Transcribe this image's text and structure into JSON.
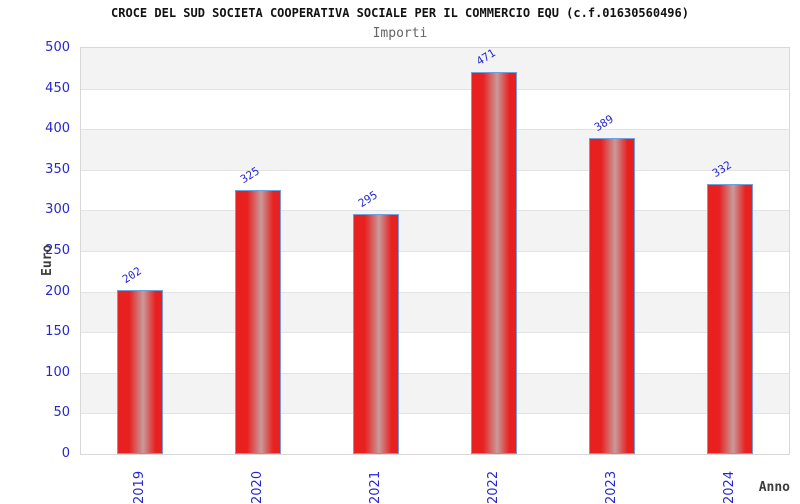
{
  "page": {
    "title": "CROCE DEL SUD SOCIETA COOPERATIVA SOCIALE PER IL COMMERCIO EQU (c.f.01630560496)",
    "subtitle": "Importi"
  },
  "chart_data": {
    "type": "bar",
    "title": "CROCE DEL SUD SOCIETA COOPERATIVA SOCIALE PER IL COMMERCIO EQU (c.f.01630560496)",
    "subtitle": "Importi",
    "categories": [
      "2019",
      "2020",
      "2021",
      "2022",
      "2023",
      "2024"
    ],
    "values": [
      202,
      325,
      295,
      471,
      389,
      332
    ],
    "xlabel": "Anno",
    "ylabel": "Euro",
    "ylim": [
      0,
      500
    ],
    "y_ticks": [
      0,
      50,
      100,
      150,
      200,
      250,
      300,
      350,
      400,
      450,
      500
    ],
    "grid": "alternating horizontal bands every 50 units with light gridlines",
    "legend": "none",
    "colors": {
      "bar_red": "#e82020",
      "bar_highlight": "#c89a9a",
      "bar_border": "#6fa0dd",
      "tick_label_blue": "#2727d2",
      "band_gray": "#f3f3f3",
      "band_white": "#ffffff",
      "gridline": "#e3e3e3",
      "plot_border": "#d8d8d8",
      "title_color": "#111111",
      "subtitle_color": "#666666",
      "axis_title_color": "#3c3c3c"
    }
  }
}
